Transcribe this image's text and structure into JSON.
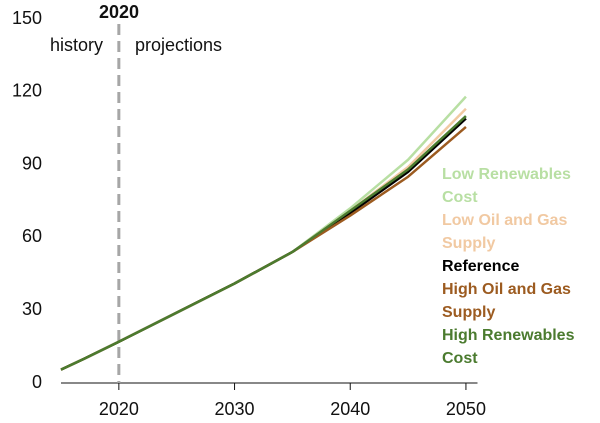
{
  "chart_data": {
    "type": "line",
    "x": [
      2015,
      2017,
      2020,
      2025,
      2030,
      2035,
      2040,
      2045,
      2050
    ],
    "series": [
      {
        "name": "Low Renewables Cost",
        "color": "#b8dfa3",
        "values": [
          5.5,
          10,
          17,
          29,
          41,
          54,
          72,
          92,
          118
        ]
      },
      {
        "name": "Low Oil and Gas Supply",
        "color": "#f1c9a2",
        "values": [
          5.5,
          10,
          17,
          29,
          41,
          54,
          71,
          89,
          113
        ]
      },
      {
        "name": "Reference",
        "color": "#000000",
        "values": [
          5.5,
          10,
          17,
          29,
          41,
          54,
          70,
          87,
          109
        ]
      },
      {
        "name": "High Oil and Gas Supply",
        "color": "#9c5b20",
        "values": [
          5.5,
          10,
          17,
          29,
          41,
          54,
          69,
          85,
          105.5
        ]
      },
      {
        "name": "High Renewables Cost",
        "color": "#4b7b2f",
        "values": [
          5.5,
          10,
          17,
          29,
          41,
          54,
          71,
          88,
          110
        ]
      }
    ],
    "xlim": [
      2015,
      2051
    ],
    "xticks": [
      2020,
      2030,
      2040,
      2050
    ],
    "ylim": [
      0,
      150
    ],
    "yticks": [
      0,
      30,
      60,
      90,
      120,
      150
    ],
    "annotations": [
      {
        "text": "2020",
        "x": 2020
      },
      {
        "text": "history"
      },
      {
        "text": "projections"
      }
    ]
  }
}
